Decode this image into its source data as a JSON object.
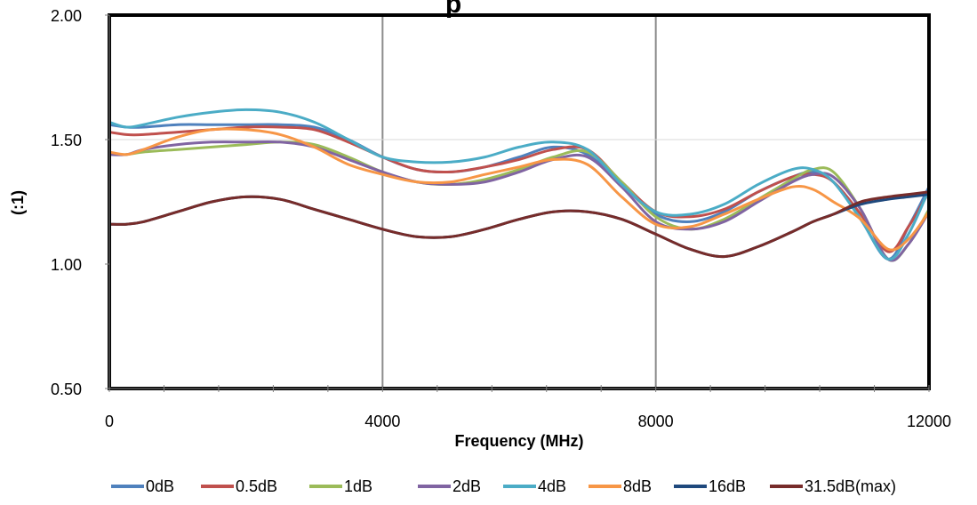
{
  "chart_data": {
    "type": "line",
    "title": "p",
    "xlabel": "Frequency (MHz)",
    "ylabel": "(:1)",
    "xlim": [
      0,
      12000
    ],
    "ylim": [
      0.5,
      2.0
    ],
    "xticks": [
      0,
      4000,
      8000,
      12000
    ],
    "xtick_labels": [
      "0",
      "4000",
      "8000",
      "12000"
    ],
    "yticks": [
      0.5,
      1.0,
      1.5,
      2.0
    ],
    "ytick_labels": [
      "0.50",
      "1.00",
      "1.50",
      "2.00"
    ],
    "vertical_gridlines": [
      4000,
      8000
    ],
    "horizontal_gridlines": [
      1.5
    ],
    "legend_position": "bottom",
    "x": [
      0,
      250,
      500,
      1000,
      1500,
      2000,
      2500,
      3000,
      3500,
      4000,
      4500,
      5000,
      5500,
      6000,
      6500,
      7000,
      7500,
      8000,
      8500,
      9000,
      9500,
      10000,
      10300,
      10600,
      11000,
      11400,
      11700,
      12000
    ],
    "series": [
      {
        "name": "0dB",
        "color": "#4F81BD",
        "values": [
          1.56,
          1.55,
          1.55,
          1.56,
          1.56,
          1.56,
          1.56,
          1.55,
          1.5,
          1.43,
          1.38,
          1.37,
          1.39,
          1.43,
          1.47,
          1.44,
          1.32,
          1.2,
          1.17,
          1.21,
          1.29,
          1.35,
          1.37,
          1.33,
          1.18,
          1.02,
          1.15,
          1.31
        ]
      },
      {
        "name": "0.5dB",
        "color": "#C0504D",
        "values": [
          1.53,
          1.52,
          1.52,
          1.53,
          1.54,
          1.55,
          1.55,
          1.54,
          1.49,
          1.43,
          1.38,
          1.37,
          1.39,
          1.42,
          1.46,
          1.46,
          1.33,
          1.21,
          1.19,
          1.22,
          1.29,
          1.35,
          1.36,
          1.33,
          1.2,
          1.05,
          1.15,
          1.29
        ]
      },
      {
        "name": "1dB",
        "color": "#9BBB59",
        "values": [
          1.44,
          1.44,
          1.45,
          1.46,
          1.47,
          1.48,
          1.49,
          1.48,
          1.43,
          1.37,
          1.33,
          1.32,
          1.34,
          1.38,
          1.43,
          1.45,
          1.33,
          1.19,
          1.14,
          1.18,
          1.26,
          1.34,
          1.38,
          1.37,
          1.22,
          1.02,
          1.08,
          1.22
        ]
      },
      {
        "name": "2dB",
        "color": "#8064A2",
        "values": [
          1.44,
          1.44,
          1.46,
          1.48,
          1.49,
          1.49,
          1.49,
          1.47,
          1.42,
          1.37,
          1.33,
          1.32,
          1.33,
          1.37,
          1.42,
          1.43,
          1.31,
          1.17,
          1.14,
          1.17,
          1.25,
          1.33,
          1.36,
          1.35,
          1.22,
          1.02,
          1.08,
          1.21
        ]
      },
      {
        "name": "4dB",
        "color": "#4BACC6",
        "values": [
          1.57,
          1.55,
          1.56,
          1.59,
          1.61,
          1.62,
          1.61,
          1.57,
          1.5,
          1.43,
          1.41,
          1.41,
          1.43,
          1.47,
          1.49,
          1.46,
          1.32,
          1.21,
          1.2,
          1.24,
          1.32,
          1.38,
          1.38,
          1.33,
          1.18,
          1.02,
          1.12,
          1.3
        ]
      },
      {
        "name": "8dB",
        "color": "#F79646",
        "values": [
          1.45,
          1.44,
          1.46,
          1.51,
          1.54,
          1.54,
          1.52,
          1.47,
          1.4,
          1.36,
          1.33,
          1.33,
          1.36,
          1.39,
          1.42,
          1.4,
          1.27,
          1.16,
          1.15,
          1.2,
          1.26,
          1.31,
          1.3,
          1.25,
          1.18,
          1.06,
          1.1,
          1.21
        ]
      },
      {
        "name": "16dB",
        "color": "#1F497D",
        "values": [
          1.16,
          1.16,
          1.17,
          1.21,
          1.25,
          1.27,
          1.26,
          1.22,
          1.18,
          1.14,
          1.11,
          1.11,
          1.14,
          1.18,
          1.21,
          1.21,
          1.18,
          1.12,
          1.06,
          1.03,
          1.07,
          1.13,
          1.17,
          1.2,
          1.24,
          1.26,
          1.27,
          1.28
        ]
      },
      {
        "name": "31.5dB(max)",
        "color": "#772C2A",
        "values": [
          1.16,
          1.16,
          1.17,
          1.21,
          1.25,
          1.27,
          1.26,
          1.22,
          1.18,
          1.14,
          1.11,
          1.11,
          1.14,
          1.18,
          1.21,
          1.21,
          1.18,
          1.12,
          1.06,
          1.03,
          1.07,
          1.13,
          1.17,
          1.2,
          1.25,
          1.27,
          1.28,
          1.29
        ]
      }
    ]
  }
}
